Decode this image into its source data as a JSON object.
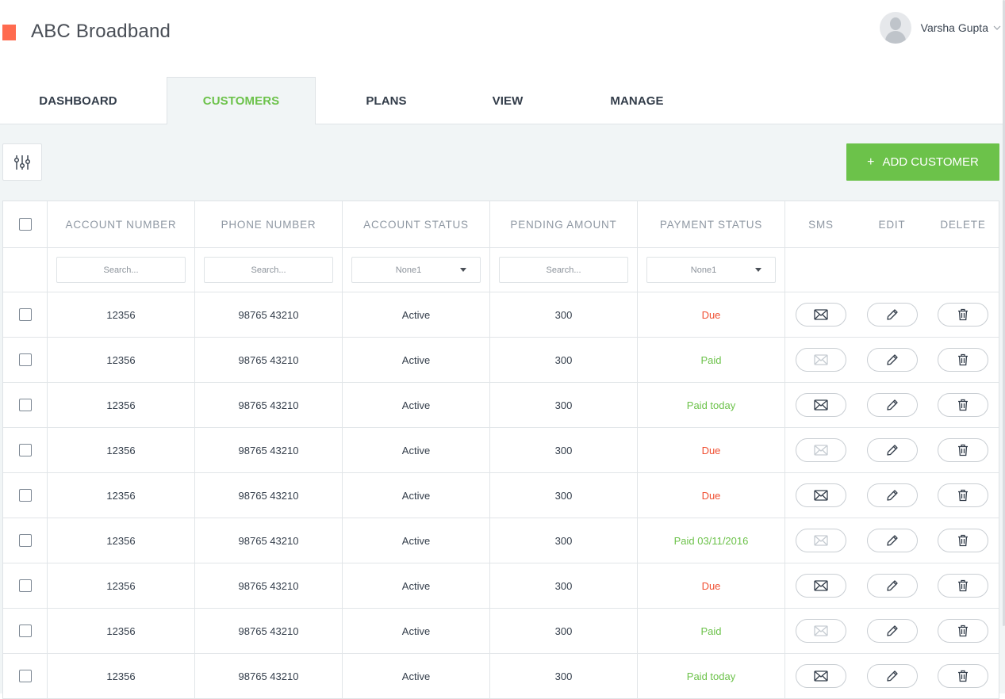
{
  "app": {
    "brand": "ABC Broadband",
    "brand_color": "#ff6b4f"
  },
  "user": {
    "name": "Varsha Gupta"
  },
  "tabs": [
    {
      "label": "DASHBOARD",
      "active": false
    },
    {
      "label": "CUSTOMERS",
      "active": true
    },
    {
      "label": "PLANS",
      "active": false
    },
    {
      "label": "VIEW",
      "active": false
    },
    {
      "label": "MANAGE",
      "active": false
    }
  ],
  "toolbar": {
    "add_label": "ADD CUSTOMER",
    "add_icon": "plus-icon",
    "filter_icon": "sliders-icon",
    "accent": "#6cc24a"
  },
  "table": {
    "headers": [
      "ACCOUNT NUMBER",
      "PHONE NUMBER",
      "ACCOUNT STATUS",
      "PENDING AMOUNT",
      "PAYMENT STATUS",
      "SMS",
      "EDIT",
      "DELETE"
    ],
    "filters": {
      "account_search_placeholder": "Search...",
      "phone_search_placeholder": "Search...",
      "status_select_value": "None1",
      "amount_search_placeholder": "Search...",
      "payment_select_value": "None1"
    },
    "rows": [
      {
        "account": "12356",
        "phone": "98765 43210",
        "status": "Active",
        "amount": "300",
        "payment": "Due",
        "payment_type": "due",
        "sms_enabled": true
      },
      {
        "account": "12356",
        "phone": "98765 43210",
        "status": "Active",
        "amount": "300",
        "payment": "Paid",
        "payment_type": "paid",
        "sms_enabled": false
      },
      {
        "account": "12356",
        "phone": "98765 43210",
        "status": "Active",
        "amount": "300",
        "payment": "Paid today",
        "payment_type": "paid",
        "sms_enabled": true
      },
      {
        "account": "12356",
        "phone": "98765 43210",
        "status": "Active",
        "amount": "300",
        "payment": "Due",
        "payment_type": "due",
        "sms_enabled": false
      },
      {
        "account": "12356",
        "phone": "98765 43210",
        "status": "Active",
        "amount": "300",
        "payment": "Due",
        "payment_type": "due",
        "sms_enabled": true
      },
      {
        "account": "12356",
        "phone": "98765 43210",
        "status": "Active",
        "amount": "300",
        "payment": "Paid 03/11/2016",
        "payment_type": "paid",
        "sms_enabled": false
      },
      {
        "account": "12356",
        "phone": "98765 43210",
        "status": "Active",
        "amount": "300",
        "payment": "Due",
        "payment_type": "due",
        "sms_enabled": true
      },
      {
        "account": "12356",
        "phone": "98765 43210",
        "status": "Active",
        "amount": "300",
        "payment": "Paid",
        "payment_type": "paid",
        "sms_enabled": false
      },
      {
        "account": "12356",
        "phone": "98765 43210",
        "status": "Active",
        "amount": "300",
        "payment": "Paid today",
        "payment_type": "paid",
        "sms_enabled": true
      }
    ]
  },
  "colors": {
    "due": "#f04f32",
    "paid": "#6cc24a"
  }
}
